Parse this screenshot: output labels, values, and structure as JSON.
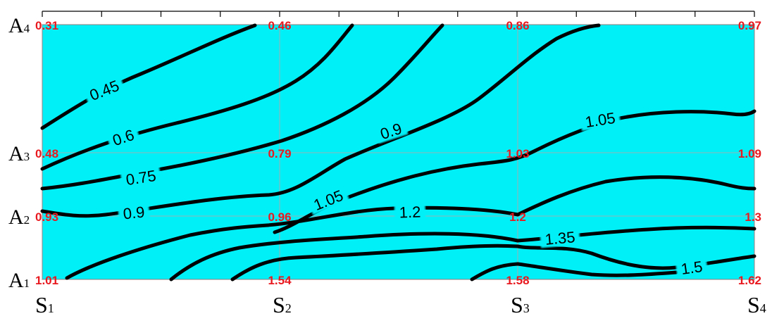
{
  "chart_data": {
    "type": "contour",
    "x_labels": [
      {
        "main": "S",
        "sub": "1"
      },
      {
        "main": "S",
        "sub": "2"
      },
      {
        "main": "S",
        "sub": "3"
      },
      {
        "main": "S",
        "sub": "4"
      }
    ],
    "y_labels": [
      {
        "main": "A",
        "sub": "1"
      },
      {
        "main": "A",
        "sub": "2"
      },
      {
        "main": "A",
        "sub": "3"
      },
      {
        "main": "A",
        "sub": "4"
      }
    ],
    "grid_values": [
      [
        "1.01",
        "1.54",
        "1.58",
        "1.62"
      ],
      [
        "0.93",
        "0.96",
        "1.2",
        "1.3"
      ],
      [
        "0.48",
        "0.79",
        "1.03",
        "1.09"
      ],
      [
        "0.31",
        "0.46",
        "0.86",
        "0.97"
      ]
    ],
    "contour_levels": [
      "0.45",
      "0.6",
      "0.75",
      "0.9",
      "1.05",
      "1.2",
      "1.35",
      "1.5"
    ],
    "contour_labels": [
      {
        "text": "0.45",
        "level": 0.45
      },
      {
        "text": "0.6",
        "level": 0.6
      },
      {
        "text": "0.75",
        "level": 0.75
      },
      {
        "text": "0.9",
        "level": 0.9
      },
      {
        "text": "0.9",
        "level": 0.9
      },
      {
        "text": "1.05",
        "level": 1.05
      },
      {
        "text": "1.05",
        "level": 1.05
      },
      {
        "text": "1.2",
        "level": 1.2
      },
      {
        "text": "1.35",
        "level": 1.35
      },
      {
        "text": "1.5",
        "level": 1.5
      }
    ],
    "colors": {
      "fill": "#00f0f8",
      "contour": "#000000",
      "value_text": "#e8191f",
      "gridline": "#c8a0a0"
    },
    "grid": true
  }
}
